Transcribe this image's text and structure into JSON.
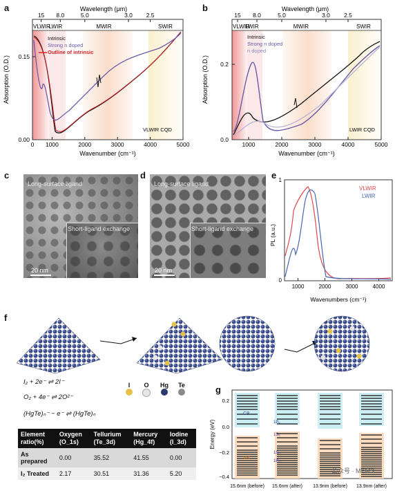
{
  "panels": {
    "a": "a",
    "b": "b",
    "c": "c",
    "d": "d",
    "e": "e",
    "f": "f",
    "g": "g"
  },
  "panel_a": {
    "top_axis_label": "Wavelength (μm)",
    "top_ticks": [
      "15",
      "8.0",
      "5.0",
      "3.0",
      "2.5"
    ],
    "bands": [
      "VLWIR",
      "LWIR",
      "MWIR",
      "SWIR"
    ],
    "xlabel": "Wavenumber (cm⁻¹)",
    "ylabel": "Absorption (O.D.)",
    "xticks": [
      "0",
      "1000",
      "2000",
      "3000",
      "4000",
      "5000"
    ],
    "yticks": [
      "0.00",
      "0.15"
    ],
    "legend": [
      "Intrinsic",
      "Strong n doped",
      "Outline of intrinsic"
    ],
    "annotation": "VLWIR CQD",
    "colors": {
      "intrinsic": "#111111",
      "doped": "#6b5aa8",
      "outline": "#d4232a"
    }
  },
  "panel_b": {
    "top_axis_label": "Wavelength (μm)",
    "top_ticks": [
      "15",
      "8.0",
      "5.0",
      "3.0",
      "2.5"
    ],
    "bands": [
      "VLWIR",
      "LWIR",
      "MWIR",
      "SWIR"
    ],
    "xlabel": "Wavenumber (cm⁻¹)",
    "ylabel": "Absorption (O.D.)",
    "xticks": [
      "1000",
      "2000",
      "3000",
      "4000",
      "5000"
    ],
    "yticks": [
      "0.0",
      "0.2"
    ],
    "legend": [
      "Intrinsic",
      "Strong n doped",
      "n doped"
    ],
    "annotation": "LWIR CQD",
    "colors": {
      "intrinsic": "#111111",
      "strong": "#6b5aa8",
      "ndoped": "#b7b3d8"
    }
  },
  "panel_c": {
    "label_top": "Long-surface ligand",
    "label_inset": "Short-ligand exchange",
    "scale": "20 nm"
  },
  "panel_d": {
    "label_top": "Long-surface ligand",
    "label_inset": "Short-ligand exchange",
    "scale": "20 nm"
  },
  "panel_e": {
    "xlabel": "Wavenumbers (cm⁻¹)",
    "ylabel": "PL (a.u.)",
    "xticks": [
      "1000",
      "2000",
      "3000",
      "4000"
    ],
    "yticks": [
      "0",
      "1"
    ],
    "legend": [
      "VLWIR",
      "LWIR"
    ],
    "colors": {
      "vlwir": "#e0474c",
      "lwir": "#4a64b5"
    }
  },
  "panel_f": {
    "equations": [
      "I₂ + 2e⁻ ⇌ 2I⁻",
      "O₂ + 4e⁻ ⇌ 2O²⁻",
      "(HgTe)ₙ⁻ − e⁻ ⇌ (HgTe)ₙ"
    ],
    "atom_legend": [
      {
        "symbol": "I",
        "color": "#e5c24a"
      },
      {
        "symbol": "O",
        "color": "#e6e6e6"
      },
      {
        "symbol": "Hg",
        "color": "#2a3a6e"
      },
      {
        "symbol": "Te",
        "color": "#8a8a8a"
      }
    ],
    "table": {
      "headers": [
        "Element ratio(%)",
        "Oxygen (O_1s)",
        "Tellurium (Te_3d)",
        "Mercury (Hg_4f)",
        "Iodine (I_3d)"
      ],
      "rows": [
        [
          "As prepared",
          "0.00",
          "35.52",
          "41.55",
          "0.00"
        ],
        [
          "I₂ Treated",
          "2.17",
          "30.51",
          "31.36",
          "5.20"
        ]
      ]
    }
  },
  "panel_g": {
    "ylabel": "Energy (eV)",
    "yticks": [
      "0.2",
      "0.0",
      "−0.2",
      "−0.4"
    ],
    "columns": [
      "15.6nm (before)",
      "15.6nm (after)",
      "13.9nm (before)",
      "13.9nm (after)"
    ],
    "cb_label": "CB",
    "vb_label": "VB",
    "state_labels": [
      "1Pₑ",
      "1Sₑ",
      "1Sₕ",
      "1Pₕ"
    ],
    "watermark": "公众号 · MEMS"
  }
}
